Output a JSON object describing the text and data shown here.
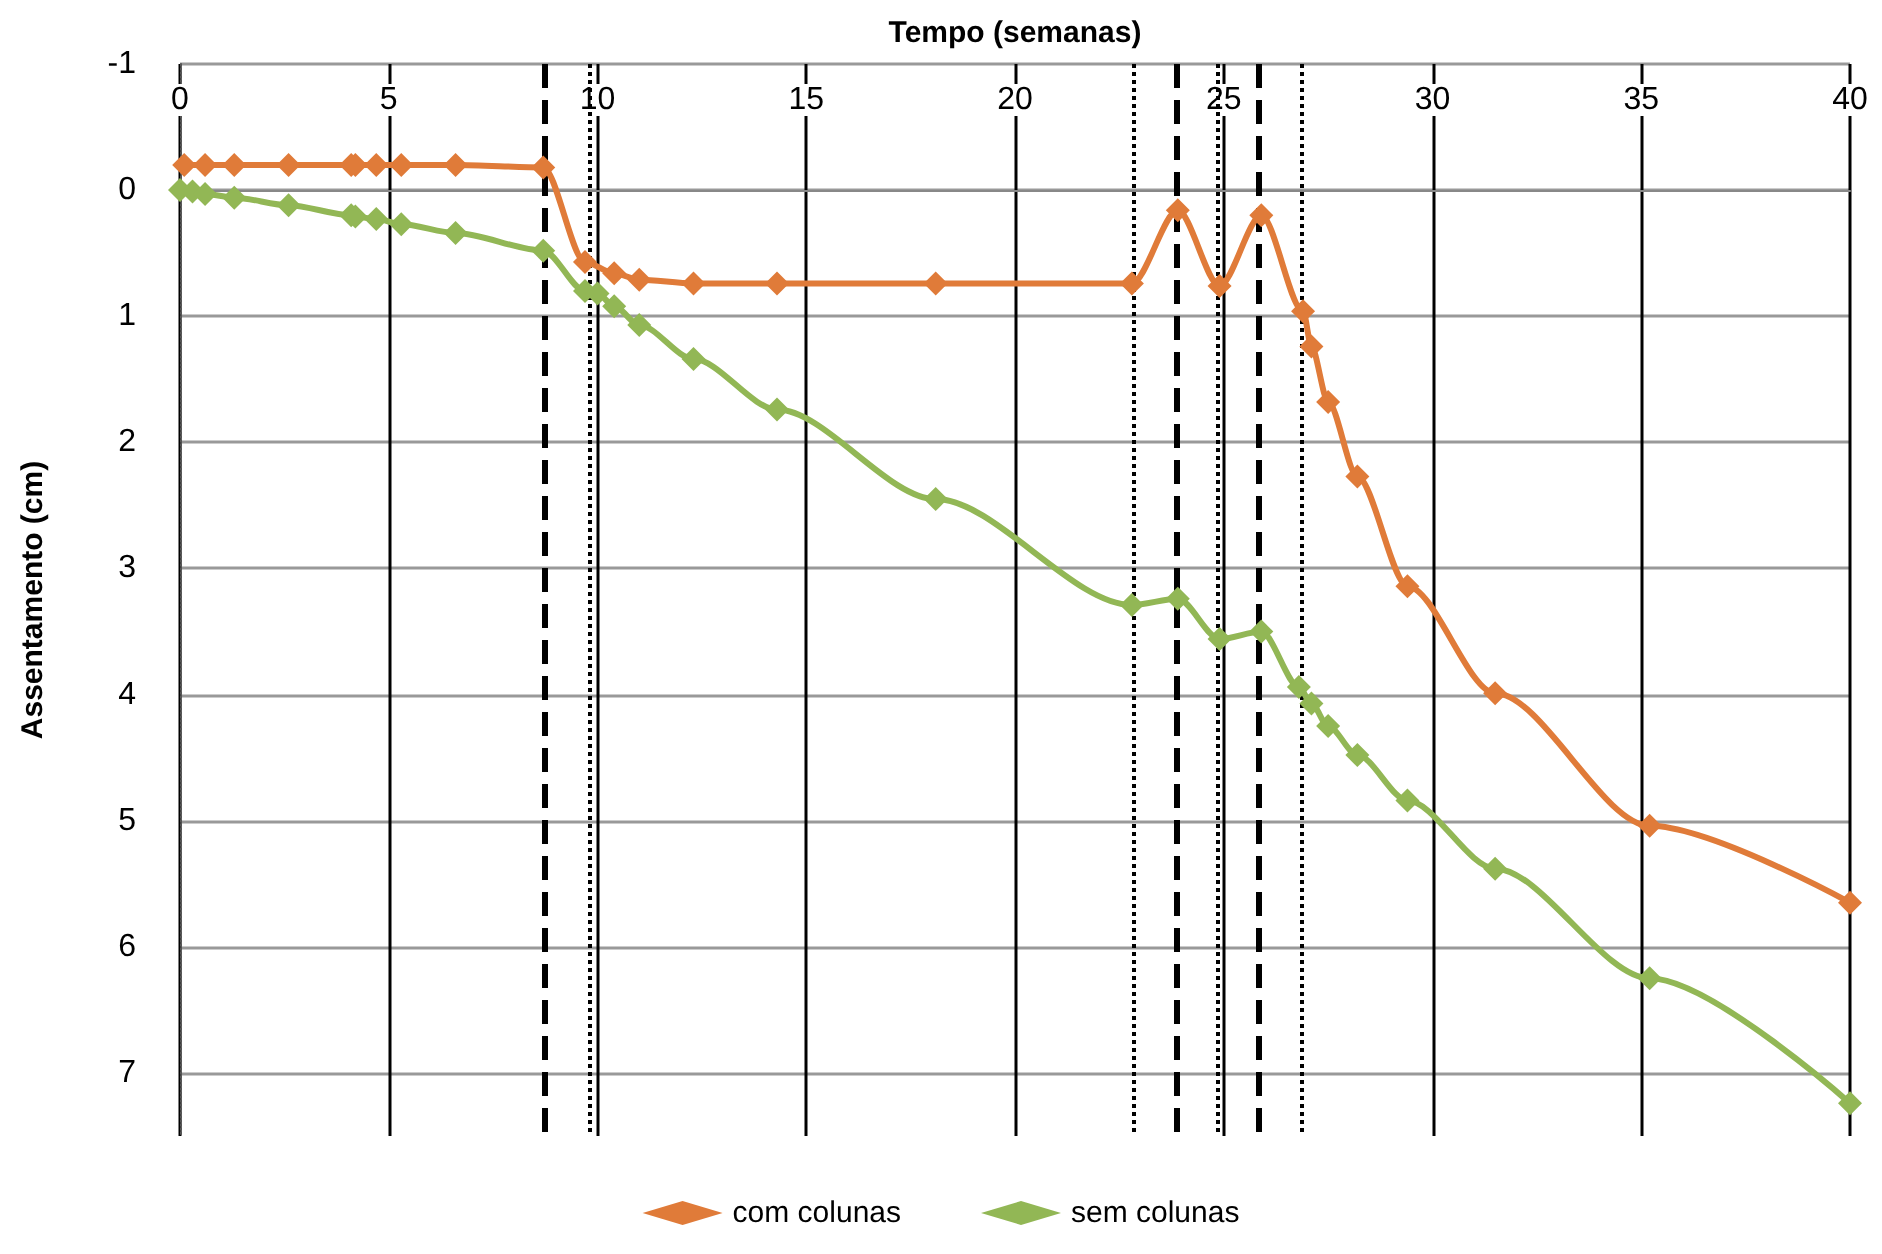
{
  "chart_data": {
    "type": "line",
    "xlabel": "Tempo (semanas)",
    "ylabel": "Assentamento (cm)",
    "xlim": [
      0,
      40
    ],
    "xticks": [
      0,
      5,
      10,
      15,
      20,
      25,
      30,
      35,
      40
    ],
    "ylim": [
      7.5,
      -1
    ],
    "yticks": [
      -1,
      0,
      1,
      2,
      3,
      4,
      5,
      6,
      7
    ],
    "grid": true,
    "legend": "bottom",
    "marker": "diamond",
    "series": [
      {
        "name": "com colunas",
        "color": "#e07b39",
        "x": [
          0.1,
          0.6,
          1.3,
          2.6,
          4.1,
          4.2,
          4.7,
          5.3,
          6.6,
          8.7,
          9.7,
          10.4,
          11.0,
          12.3,
          14.3,
          18.1,
          22.8,
          23.9,
          24.9,
          25.9,
          26.9,
          27.1,
          27.5,
          28.2,
          29.4,
          31.5,
          35.2,
          40
        ],
        "values": [
          -0.2,
          -0.2,
          -0.2,
          -0.2,
          -0.2,
          -0.2,
          -0.2,
          -0.2,
          -0.2,
          -0.18,
          0.57,
          0.66,
          0.71,
          0.74,
          0.74,
          0.74,
          0.74,
          0.16,
          0.76,
          0.2,
          0.96,
          1.24,
          1.68,
          2.27,
          3.14,
          3.99,
          5.04,
          5.65
        ]
      },
      {
        "name": "sem colunas",
        "color": "#92b755",
        "x": [
          0,
          0.3,
          0.6,
          1.3,
          2.6,
          4.1,
          4.2,
          4.7,
          5.3,
          6.6,
          8.7,
          9.7,
          10.0,
          10.4,
          11.0,
          12.3,
          14.3,
          18.1,
          22.8,
          23.9,
          24.9,
          25.9,
          26.8,
          27.1,
          27.5,
          28.2,
          29.4,
          31.5,
          35.2,
          40
        ],
        "values": [
          0,
          0.01,
          0.03,
          0.06,
          0.12,
          0.2,
          0.21,
          0.23,
          0.27,
          0.34,
          0.48,
          0.8,
          0.82,
          0.92,
          1.07,
          1.34,
          1.74,
          2.45,
          3.29,
          3.24,
          3.56,
          3.5,
          3.94,
          4.07,
          4.25,
          4.48,
          4.84,
          5.38,
          6.25,
          7.24
        ]
      }
    ],
    "ref_lines": [
      {
        "axis": "x",
        "value": 8.75,
        "line_style": "dashed"
      },
      {
        "axis": "x",
        "value": 9.8,
        "line_style": "dotted"
      },
      {
        "axis": "x",
        "value": 22.85,
        "line_style": "dotted"
      },
      {
        "axis": "x",
        "value": 23.85,
        "line_style": "dashed"
      },
      {
        "axis": "x",
        "value": 24.85,
        "line_style": "dotted"
      },
      {
        "axis": "x",
        "value": 25.85,
        "line_style": "dashed"
      },
      {
        "axis": "x",
        "value": 26.85,
        "line_style": "dotted"
      }
    ]
  }
}
